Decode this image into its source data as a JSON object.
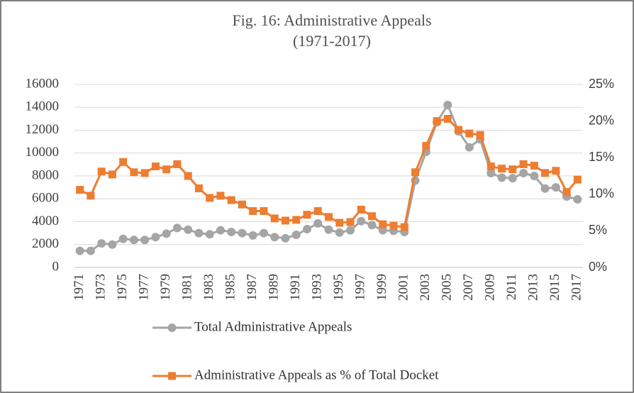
{
  "chart_data": {
    "type": "line",
    "title": "Fig. 16: Administrative Appeals",
    "subtitle": "(1971-2017)",
    "categories": [
      "1971",
      null,
      "1973",
      null,
      "1975",
      null,
      "1977",
      null,
      "1979",
      null,
      "1981",
      null,
      "1983",
      null,
      "1985",
      null,
      "1987",
      null,
      "1989",
      null,
      "1991",
      null,
      "1993",
      null,
      "1995",
      null,
      "1997",
      null,
      "1999",
      null,
      "2001",
      null,
      "2003",
      null,
      "2005",
      null,
      "2007",
      null,
      "2009",
      null,
      "2011",
      null,
      "2013",
      null,
      "2015",
      null,
      "2017"
    ],
    "series": [
      {
        "name": "Total Administrative Appeals",
        "color": "#a5a5a5",
        "marker": "circle",
        "values": [
          1450,
          1450,
          2100,
          2000,
          2500,
          2400,
          2400,
          2650,
          2950,
          3450,
          3300,
          3000,
          2900,
          3250,
          3100,
          3000,
          2800,
          3000,
          2650,
          2550,
          2850,
          3350,
          3850,
          3300,
          3050,
          3250,
          4050,
          3700,
          3250,
          3200,
          3100,
          7600,
          10100,
          12700,
          14200,
          11900,
          10500,
          11200,
          8250,
          7850,
          7800,
          8250,
          8000,
          6900,
          7000,
          6200,
          5950
        ]
      },
      {
        "name": "Administrative Appeals as % of Total Docket",
        "color": "#ed7d31",
        "marker": "square",
        "axis": "y2",
        "values": [
          10.6,
          9.8,
          13.1,
          12.7,
          14.4,
          13.0,
          12.9,
          13.8,
          13.4,
          14.1,
          12.5,
          10.8,
          9.5,
          9.8,
          9.2,
          8.6,
          7.7,
          7.7,
          6.7,
          6.4,
          6.5,
          7.2,
          7.7,
          6.9,
          6.1,
          6.2,
          7.9,
          7.0,
          5.9,
          5.7,
          5.5,
          13.0,
          16.6,
          20.0,
          20.3,
          18.8,
          18.3,
          18.1,
          13.8,
          13.5,
          13.4,
          14.1,
          13.9,
          12.9,
          13.2,
          10.3,
          12.0
        ]
      }
    ],
    "ylim": [
      0,
      16000
    ],
    "yticks": [
      0,
      2000,
      4000,
      6000,
      8000,
      10000,
      12000,
      14000,
      16000
    ],
    "y2lim": [
      0,
      25
    ],
    "y2ticks": [
      {
        "value": 0,
        "label": "0%"
      },
      {
        "value": 5,
        "label": "5%"
      },
      {
        "value": 10,
        "label": "10%"
      },
      {
        "value": 15,
        "label": "15%"
      },
      {
        "value": 20,
        "label": "20%"
      },
      {
        "value": 25,
        "label": "25%"
      }
    ],
    "grid": true,
    "legend": "bottom"
  }
}
